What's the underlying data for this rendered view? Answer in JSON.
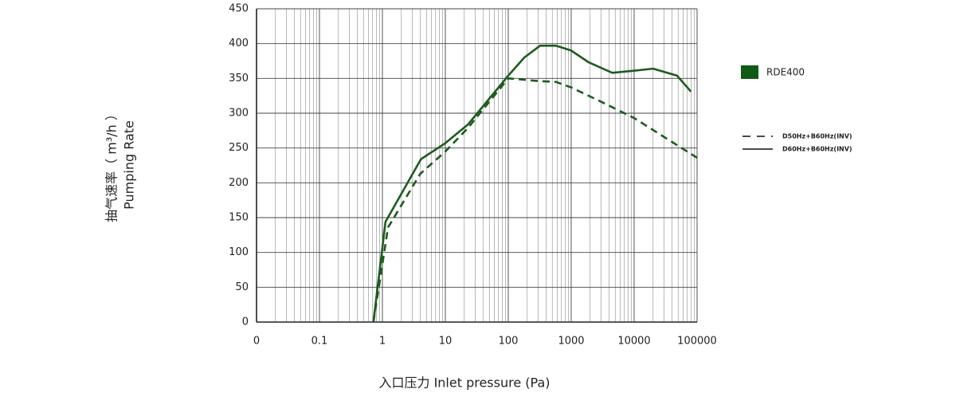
{
  "chart_data": {
    "type": "line",
    "ylabel": [
      "抽气速率（ m³/h ）",
      "Pumping Rate"
    ],
    "xlabel": "入口压力 Inlet pressure (Pa)",
    "legend_title": "RDE400",
    "legend_color": "#0f5a14",
    "xscale": "log",
    "grid": true,
    "minor_grid": true,
    "xlim": [
      0.01,
      100000
    ],
    "xticks": [
      {
        "value": 0.01,
        "label": "0"
      },
      0.1,
      1,
      10,
      100,
      1000,
      10000,
      100000
    ],
    "ylim": [
      0,
      450
    ],
    "yticks": [
      0,
      50,
      100,
      150,
      200,
      250,
      300,
      350,
      400,
      450
    ],
    "series": [
      {
        "name": "D50Hz+B60Hz(INV)",
        "color": "#1e5b1e",
        "dash": true,
        "x": [
          0.72,
          1.23,
          4,
          10,
          23,
          100,
          320,
          570,
          1000,
          3400,
          10000,
          100000
        ],
        "values": [
          0,
          136,
          213,
          245,
          279,
          350,
          346,
          345,
          337,
          314,
          293,
          236
        ]
      },
      {
        "name": "D60Hz+B60Hz(INV)",
        "color": "#1e5b1e",
        "dash": false,
        "x": [
          0.72,
          1.12,
          4.1,
          10,
          23,
          100,
          180,
          320,
          570,
          1000,
          1900,
          4500,
          10000,
          20000,
          48000,
          80000
        ],
        "values": [
          0,
          144,
          234,
          257,
          284,
          354,
          380,
          397,
          397,
          390,
          373,
          358,
          361,
          364,
          354,
          331
        ]
      }
    ]
  }
}
